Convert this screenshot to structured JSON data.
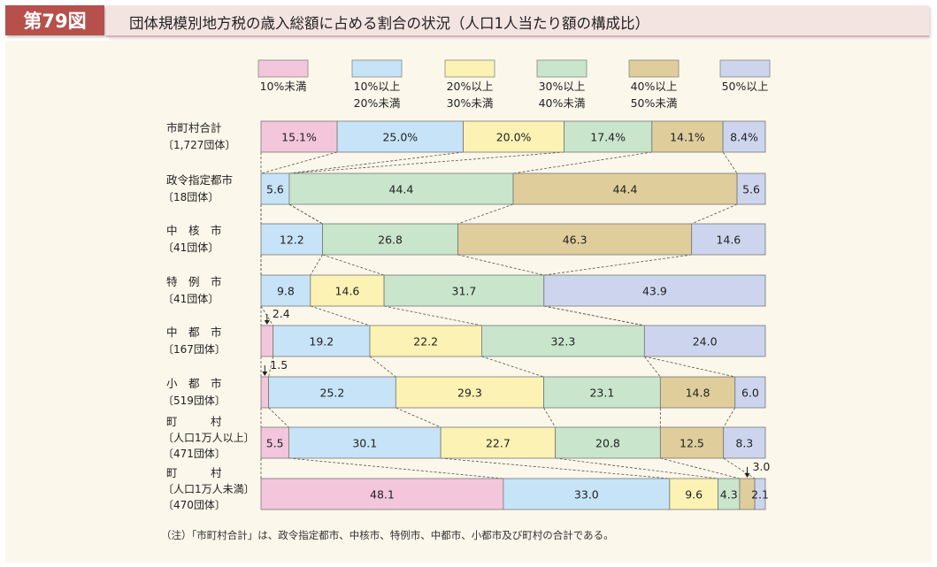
{
  "figure": {
    "number": "第79図",
    "title": "団体規模別地方税の歳入総額に占める割合の状況（人口1人当たり額の構成比）"
  },
  "legend": [
    {
      "label": "10%未満",
      "color": "#f3c6dc"
    },
    {
      "label": "10%以上\n20%未満",
      "color": "#c7e3f7"
    },
    {
      "label": "20%以上\n30%未満",
      "color": "#fbf2b3"
    },
    {
      "label": "30%以上\n40%未満",
      "color": "#c9e5cc"
    },
    {
      "label": "40%以上\n50%未満",
      "color": "#dfcd9c"
    },
    {
      "label": "50%以上",
      "color": "#cdd5ee"
    }
  ],
  "chart_data": {
    "type": "bar",
    "orientation": "horizontal",
    "stacked": true,
    "normalized": true,
    "series": [
      {
        "name": "10%未満",
        "values": [
          15.1,
          0,
          0,
          0,
          2.4,
          1.5,
          5.5,
          48.1
        ]
      },
      {
        "name": "10%以上20%未満",
        "values": [
          25.0,
          5.6,
          12.2,
          9.8,
          19.2,
          25.2,
          30.1,
          33.0
        ]
      },
      {
        "name": "20%以上30%未満",
        "values": [
          20.0,
          0,
          0,
          14.6,
          22.2,
          29.3,
          22.7,
          9.6
        ]
      },
      {
        "name": "30%以上40%未満",
        "values": [
          17.4,
          44.4,
          26.8,
          31.7,
          32.3,
          23.1,
          20.8,
          4.3
        ]
      },
      {
        "name": "40%以上50%未満",
        "values": [
          14.1,
          44.4,
          46.3,
          0,
          0,
          14.8,
          12.5,
          3.0
        ]
      },
      {
        "name": "50%以上",
        "values": [
          8.4,
          5.6,
          14.6,
          43.9,
          24.0,
          6.0,
          8.3,
          2.1
        ]
      }
    ],
    "categories": [
      {
        "name": "市町村合計",
        "count": "〔1,727団体〕"
      },
      {
        "name": "政令指定都市",
        "count": "〔18団体〕"
      },
      {
        "name": "中　核　市",
        "count": "〔41団体〕"
      },
      {
        "name": "特　例　市",
        "count": "〔41団体〕"
      },
      {
        "name": "中　都　市",
        "count": "〔167団体〕"
      },
      {
        "name": "小　都　市",
        "count": "〔519団体〕"
      },
      {
        "name": "町　　　村",
        "sub": "〔人口1万人以上〕",
        "count": "〔471団体〕"
      },
      {
        "name": "町　　　村",
        "sub": "〔人口1万人未満〕",
        "count": "〔470団体〕"
      }
    ],
    "segment_labels": [
      [
        "15.1%",
        "25.0%",
        "20.0%",
        "17.4%",
        "14.1%",
        "8.4%"
      ],
      [
        "",
        "5.6",
        "",
        "44.4",
        "44.4",
        "5.6"
      ],
      [
        "",
        "12.2",
        "",
        "26.8",
        "46.3",
        "14.6"
      ],
      [
        "",
        "9.8",
        "14.6",
        "31.7",
        "",
        "43.9"
      ],
      [
        "",
        "19.2",
        "22.2",
        "32.3",
        "",
        "24.0"
      ],
      [
        "",
        "25.2",
        "29.3",
        "23.1",
        "14.8",
        "6.0"
      ],
      [
        "5.5",
        "30.1",
        "22.7",
        "20.8",
        "12.5",
        "8.3"
      ],
      [
        "48.1",
        "33.0",
        "9.6",
        "4.3",
        "",
        "2.1"
      ]
    ],
    "callouts": [
      {
        "row": 4,
        "segment": 0,
        "text": "2.4"
      },
      {
        "row": 5,
        "segment": 0,
        "text": "1.5"
      },
      {
        "row": 7,
        "segment": 4,
        "text": "3.0"
      }
    ],
    "xlim": [
      0,
      100
    ],
    "connector_lines": true,
    "grid": false
  },
  "note": "（注）「市町村合計」は、政令指定都市、中核市、特例市、中都市、小都市及び町村の合計である。"
}
